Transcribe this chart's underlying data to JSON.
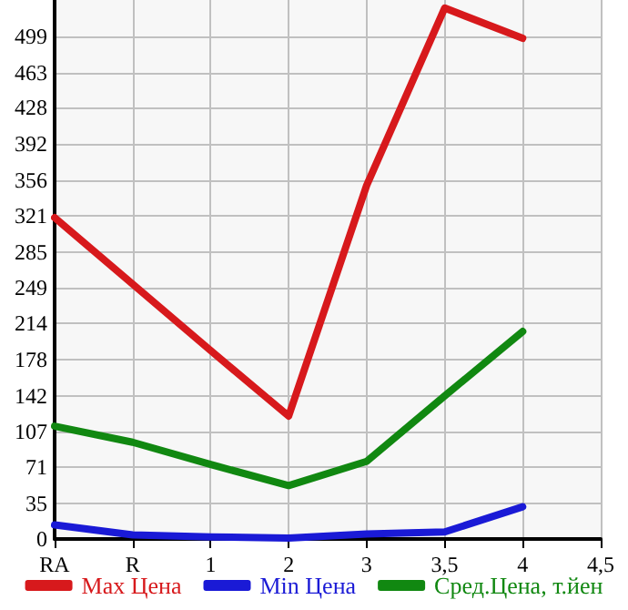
{
  "chart_data": {
    "type": "line",
    "categories": [
      "RA",
      "R",
      "1",
      "2",
      "3",
      "3,5",
      "4",
      "4,5"
    ],
    "series": [
      {
        "name": "Max Цена",
        "color": "#d7191c",
        "values": [
          319,
          253,
          187,
          122,
          351,
          527,
          497,
          null
        ]
      },
      {
        "name": "Min Цена",
        "color": "#1a1ad6",
        "values": [
          14,
          4,
          2,
          1,
          5,
          7,
          32,
          null
        ]
      },
      {
        "name": "Сред.Цена, т.йен",
        "color": "#118811",
        "values": [
          112,
          96,
          74,
          53,
          77,
          142,
          206,
          null
        ]
      }
    ],
    "ylim": [
      0,
      535
    ],
    "yticks": [
      0,
      35,
      71,
      107,
      142,
      178,
      214,
      249,
      285,
      321,
      356,
      392,
      428,
      463,
      499
    ],
    "grid": true,
    "legend": "bottom",
    "marker": "none",
    "line_style": "solid"
  }
}
